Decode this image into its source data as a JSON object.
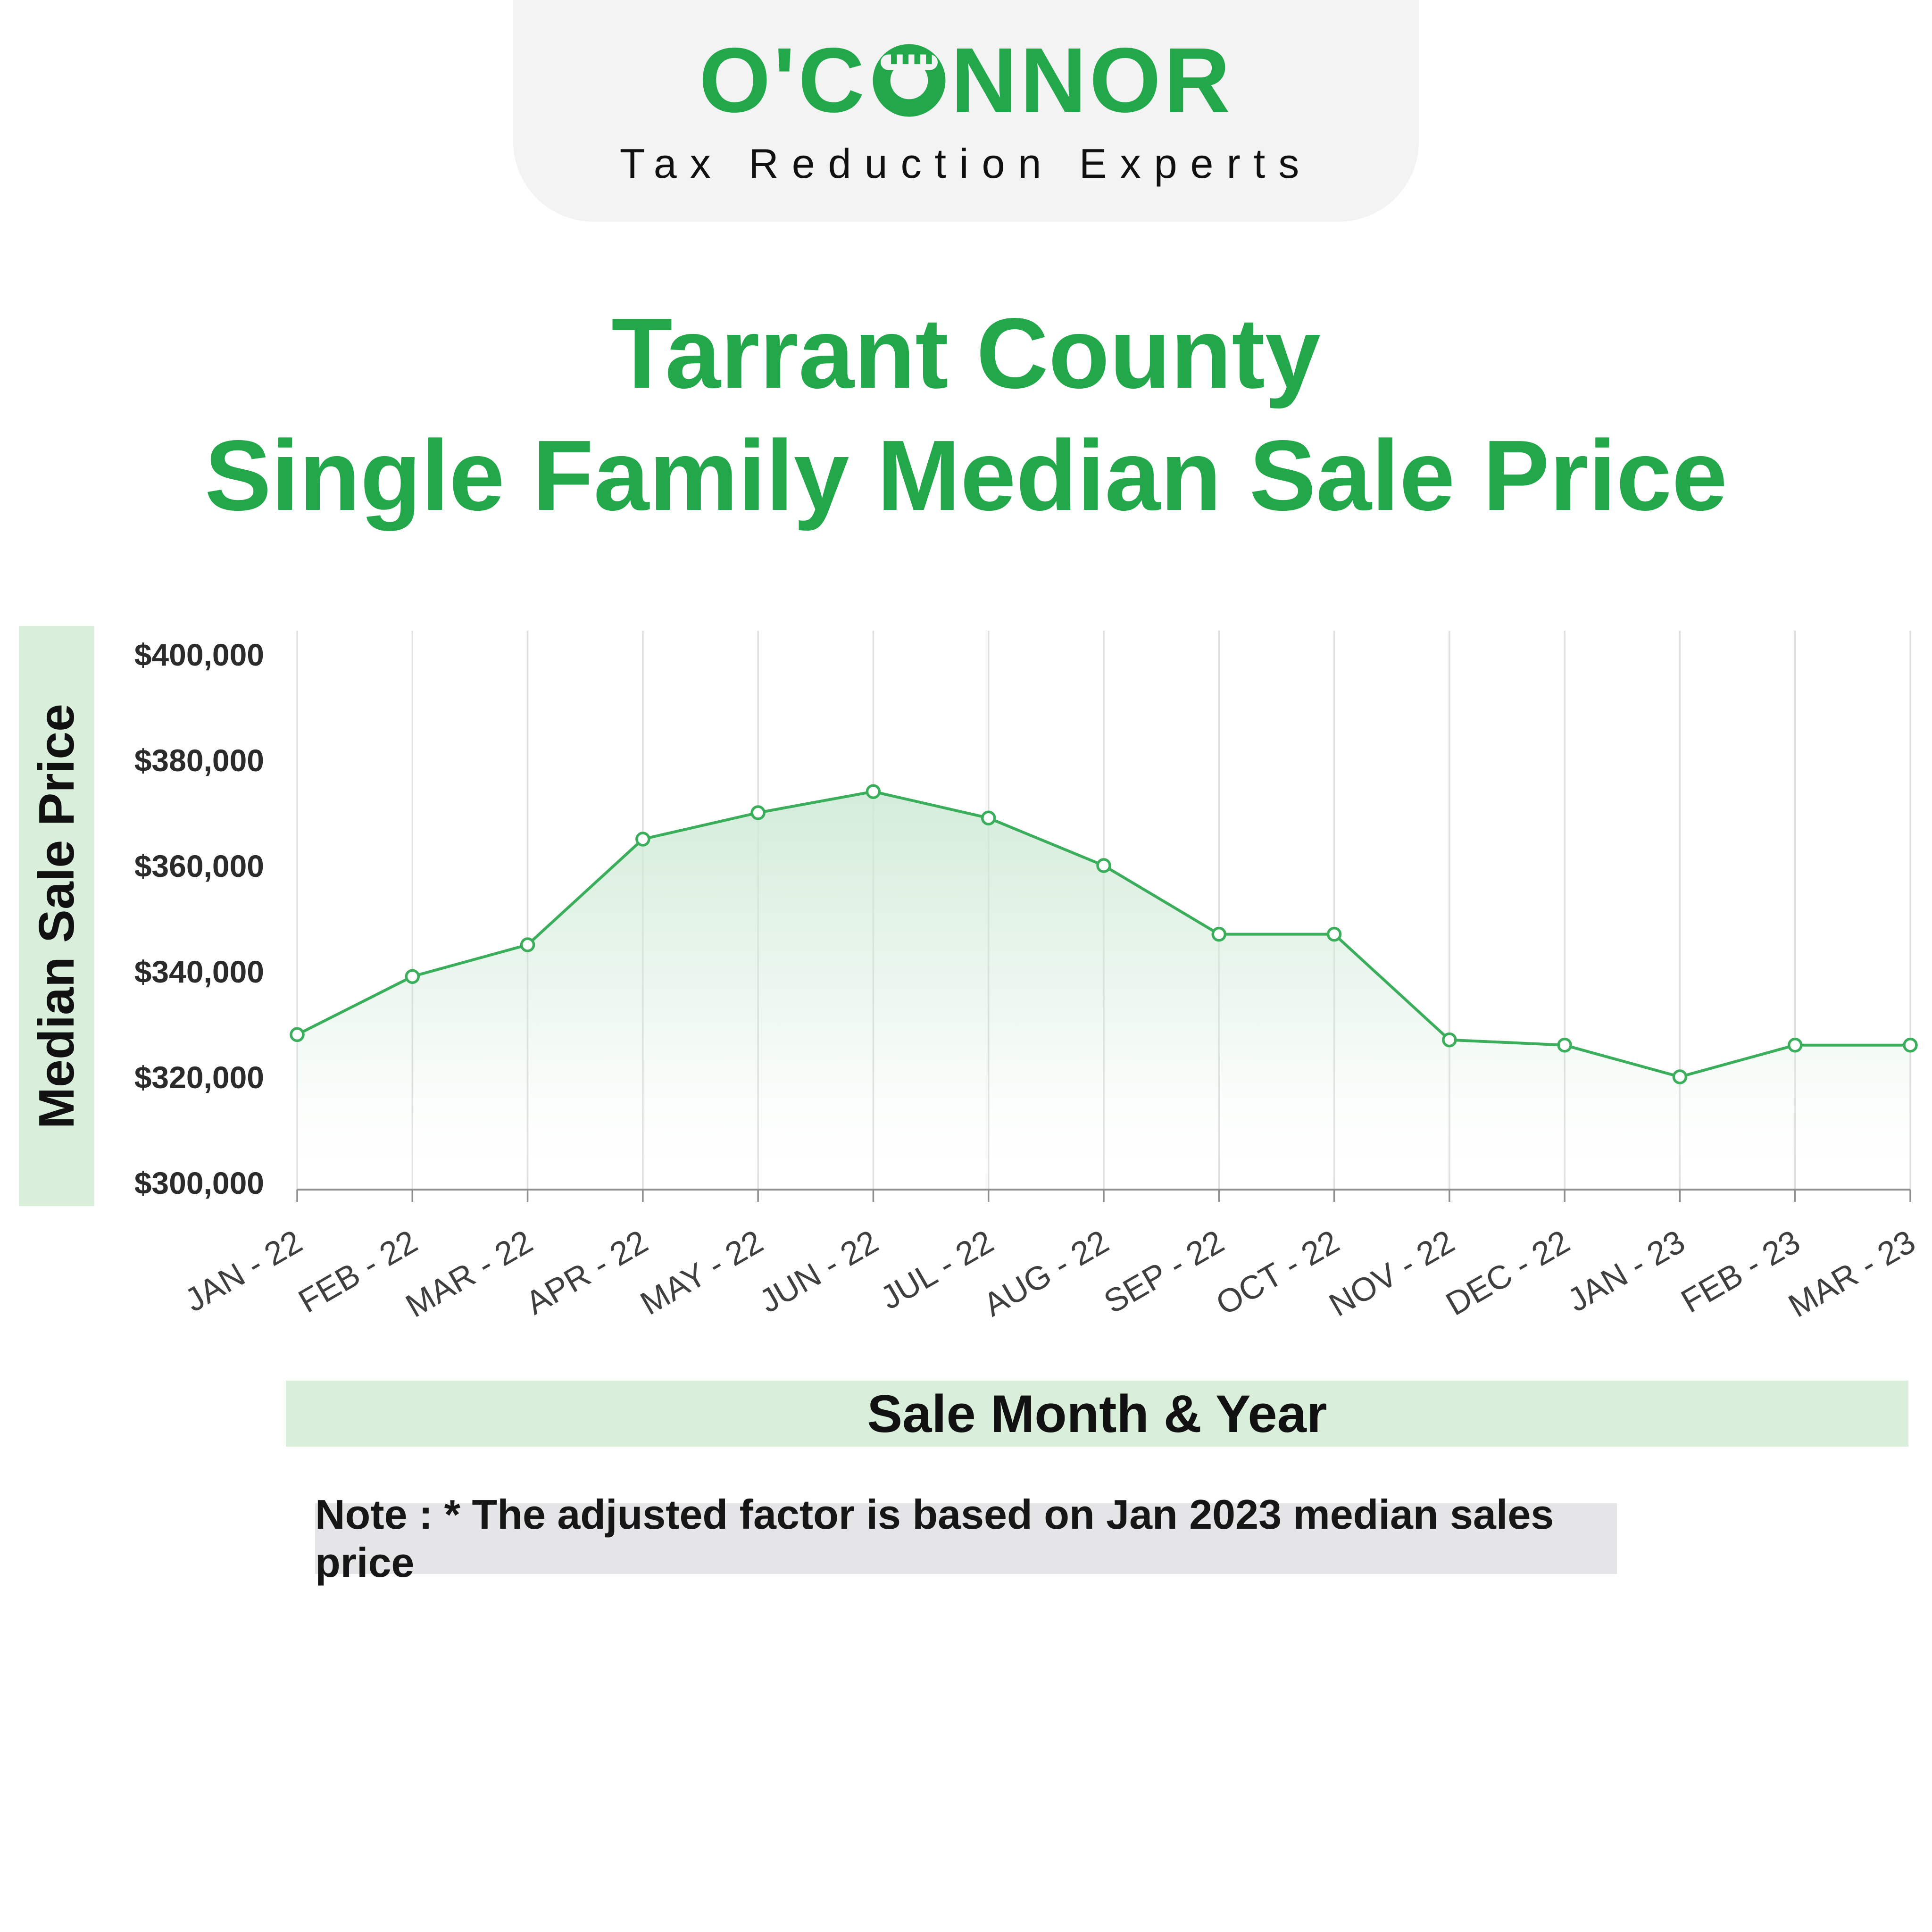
{
  "brand": {
    "logo_left": "O'C",
    "logo_right": "NNOR",
    "tagline": "Tax Reduction Experts"
  },
  "title": {
    "line1": "Tarrant County",
    "line2": "Single Family Median Sale Price"
  },
  "chart_data": {
    "type": "line",
    "title": "Tarrant County Single Family Median Sale Price",
    "x": [
      "JAN - 22",
      "FEB - 22",
      "MAR - 22",
      "APR - 22",
      "MAY - 22",
      "JUN - 22",
      "JUL - 22",
      "AUG - 22",
      "SEP - 22",
      "OCT - 22",
      "NOV - 22",
      "DEC - 22",
      "JAN - 23",
      "FEB - 23",
      "MAR - 23"
    ],
    "values": [
      328000,
      339000,
      345000,
      365000,
      370000,
      374000,
      369000,
      360000,
      347000,
      347000,
      327000,
      326000,
      320000,
      326000,
      326000
    ],
    "xlabel": "Sale Month & Year",
    "ylabel": "Median Sale Price",
    "ylim": [
      300000,
      400000
    ],
    "ytick_step": 20000,
    "ytick_labels": [
      "$300,000",
      "$320,000",
      "$340,000",
      "$360,000",
      "$380,000",
      "$400,000"
    ],
    "grid": "vertical",
    "legend": "none",
    "marker": "circle-open"
  },
  "note": {
    "label": "Note : * The adjusted factor is based on Jan 2023 median sales price"
  },
  "colors": {
    "accent": "#22a84a",
    "line": "#3bae5c",
    "fill_top": "#cfead6",
    "box_green": "#d9efdc",
    "note_bg": "#e5e5e7",
    "banner_bg": "#f3f3f3",
    "grid_line": "#e0e0e0",
    "axis_line": "#8f8f8f",
    "tick_text": "#2b2b2b",
    "xlabel_text": "#3f3f3f"
  }
}
